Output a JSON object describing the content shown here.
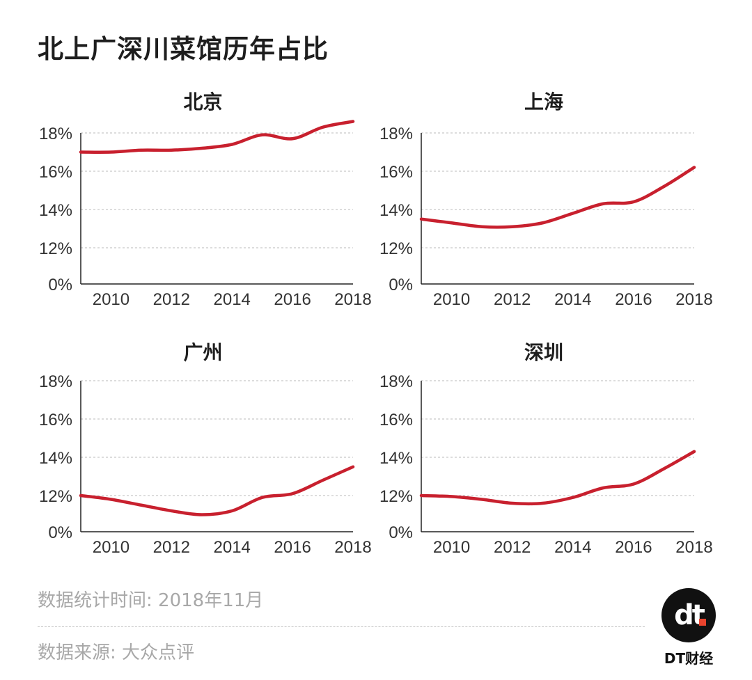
{
  "title": "北上广深川菜馆历年占比",
  "colors": {
    "line": "#c8202e",
    "axis": "#222222",
    "grid": "#bbbbbb",
    "footnote": "#a8a8a8"
  },
  "chart_data": [
    {
      "type": "line",
      "title": "北京",
      "x": [
        2009,
        2010,
        2011,
        2012,
        2013,
        2014,
        2015,
        2016,
        2017,
        2018
      ],
      "series": [
        {
          "values": [
            17.0,
            17.0,
            17.1,
            17.1,
            17.2,
            17.4,
            17.9,
            17.7,
            18.3,
            18.6
          ]
        }
      ],
      "xticks": [
        "2010",
        "2012",
        "2014",
        "2016",
        "2018"
      ],
      "yticks": [
        "0%",
        "12%",
        "14%",
        "16%",
        "18%"
      ],
      "y_axis_break": "0% then 12%-18%",
      "grid": true
    },
    {
      "type": "line",
      "title": "上海",
      "x": [
        2009,
        2010,
        2011,
        2012,
        2013,
        2014,
        2015,
        2016,
        2017,
        2018
      ],
      "series": [
        {
          "values": [
            13.5,
            13.3,
            13.1,
            13.1,
            13.3,
            13.8,
            14.3,
            14.4,
            15.2,
            16.2
          ]
        }
      ],
      "xticks": [
        "2010",
        "2012",
        "2014",
        "2016",
        "2018"
      ],
      "yticks": [
        "0%",
        "12%",
        "14%",
        "16%",
        "18%"
      ],
      "grid": true
    },
    {
      "type": "line",
      "title": "广州",
      "x": [
        2009,
        2010,
        2011,
        2012,
        2013,
        2014,
        2015,
        2016,
        2017,
        2018
      ],
      "series": [
        {
          "values": [
            12.0,
            11.8,
            11.5,
            11.2,
            11.0,
            11.2,
            11.9,
            12.1,
            12.8,
            13.5
          ]
        }
      ],
      "xticks": [
        "2010",
        "2012",
        "2014",
        "2016",
        "2018"
      ],
      "yticks": [
        "0%",
        "12%",
        "14%",
        "16%",
        "18%"
      ],
      "grid": true
    },
    {
      "type": "line",
      "title": "深圳",
      "x": [
        2009,
        2010,
        2011,
        2012,
        2013,
        2014,
        2015,
        2016,
        2017,
        2018
      ],
      "series": [
        {
          "values": [
            12.0,
            11.95,
            11.8,
            11.6,
            11.6,
            11.9,
            12.4,
            12.6,
            13.4,
            14.3
          ]
        }
      ],
      "xticks": [
        "2010",
        "2012",
        "2014",
        "2016",
        "2018"
      ],
      "yticks": [
        "0%",
        "12%",
        "14%",
        "16%",
        "18%"
      ],
      "grid": true
    }
  ],
  "footnotes": {
    "time": "数据统计时间: 2018年11月",
    "source": "数据来源: 大众点评"
  },
  "logo": {
    "mark": "dt",
    "brand": "DT财经"
  }
}
